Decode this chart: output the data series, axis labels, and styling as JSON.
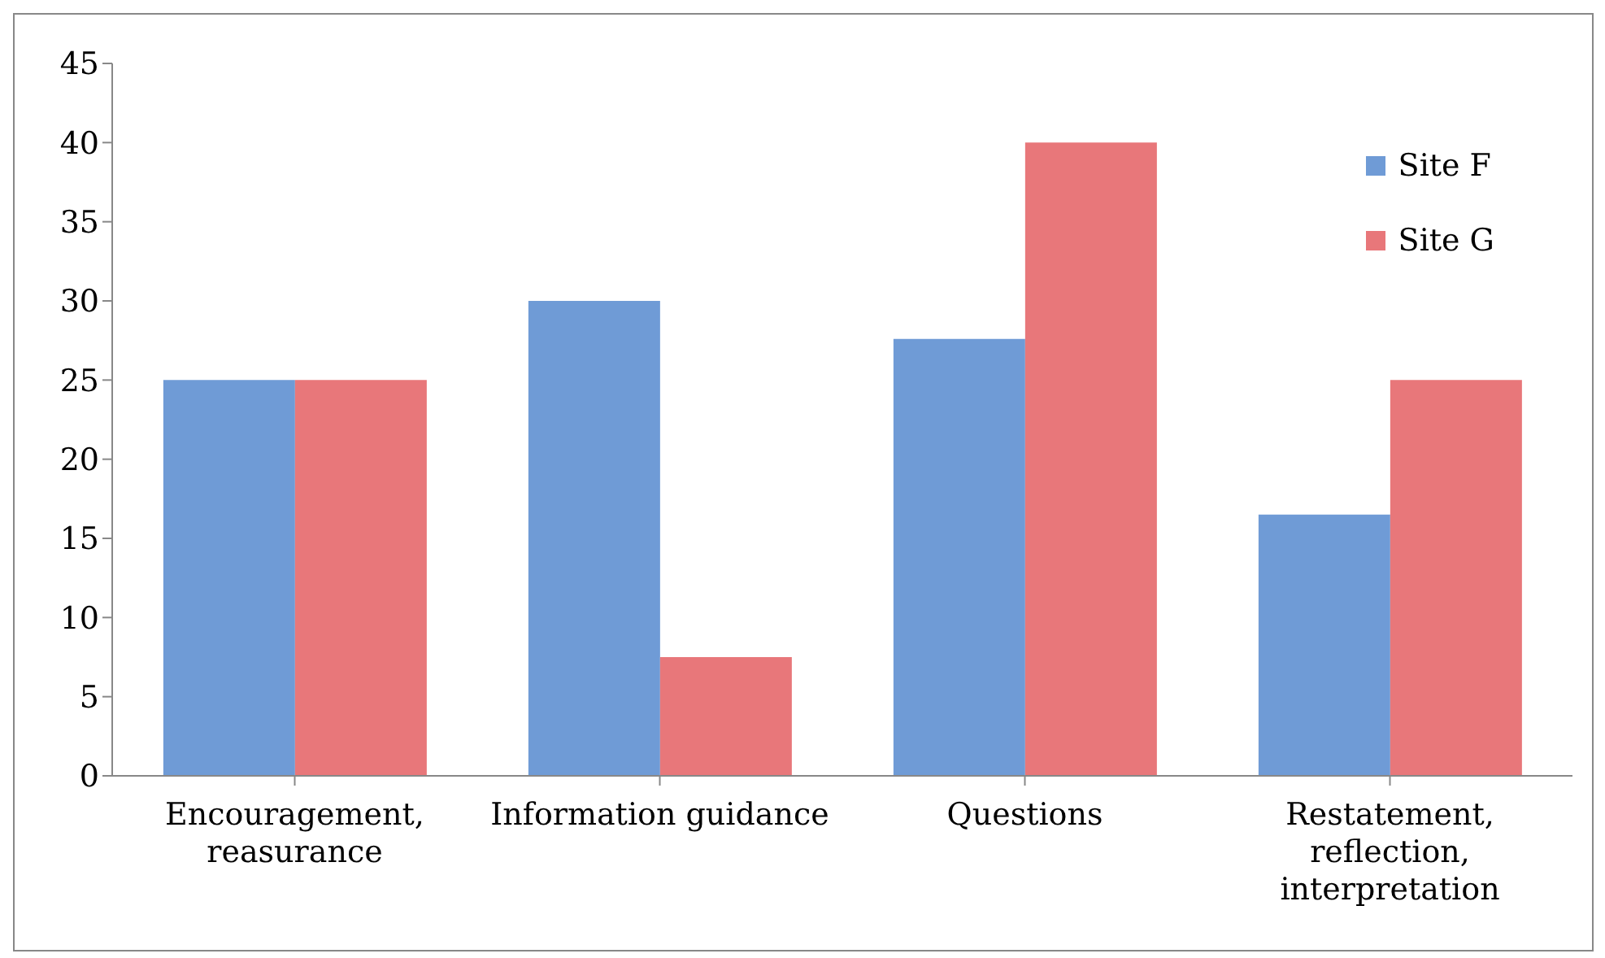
{
  "chart_data": {
    "type": "bar",
    "categories": [
      "Encouragement, reasurance",
      "Information guidance",
      "Questions",
      "Restatement, reflection, interpretation"
    ],
    "series": [
      {
        "name": "Site F",
        "color": "#6f9bd6",
        "values": [
          25,
          30,
          27.6,
          16.5
        ]
      },
      {
        "name": "Site G",
        "color": "#e8777a",
        "values": [
          25,
          7.5,
          40,
          25
        ]
      }
    ],
    "ylim": [
      0,
      45
    ],
    "yticks": [
      0,
      5,
      10,
      15,
      20,
      25,
      30,
      35,
      40,
      45
    ],
    "legend": "top right"
  }
}
